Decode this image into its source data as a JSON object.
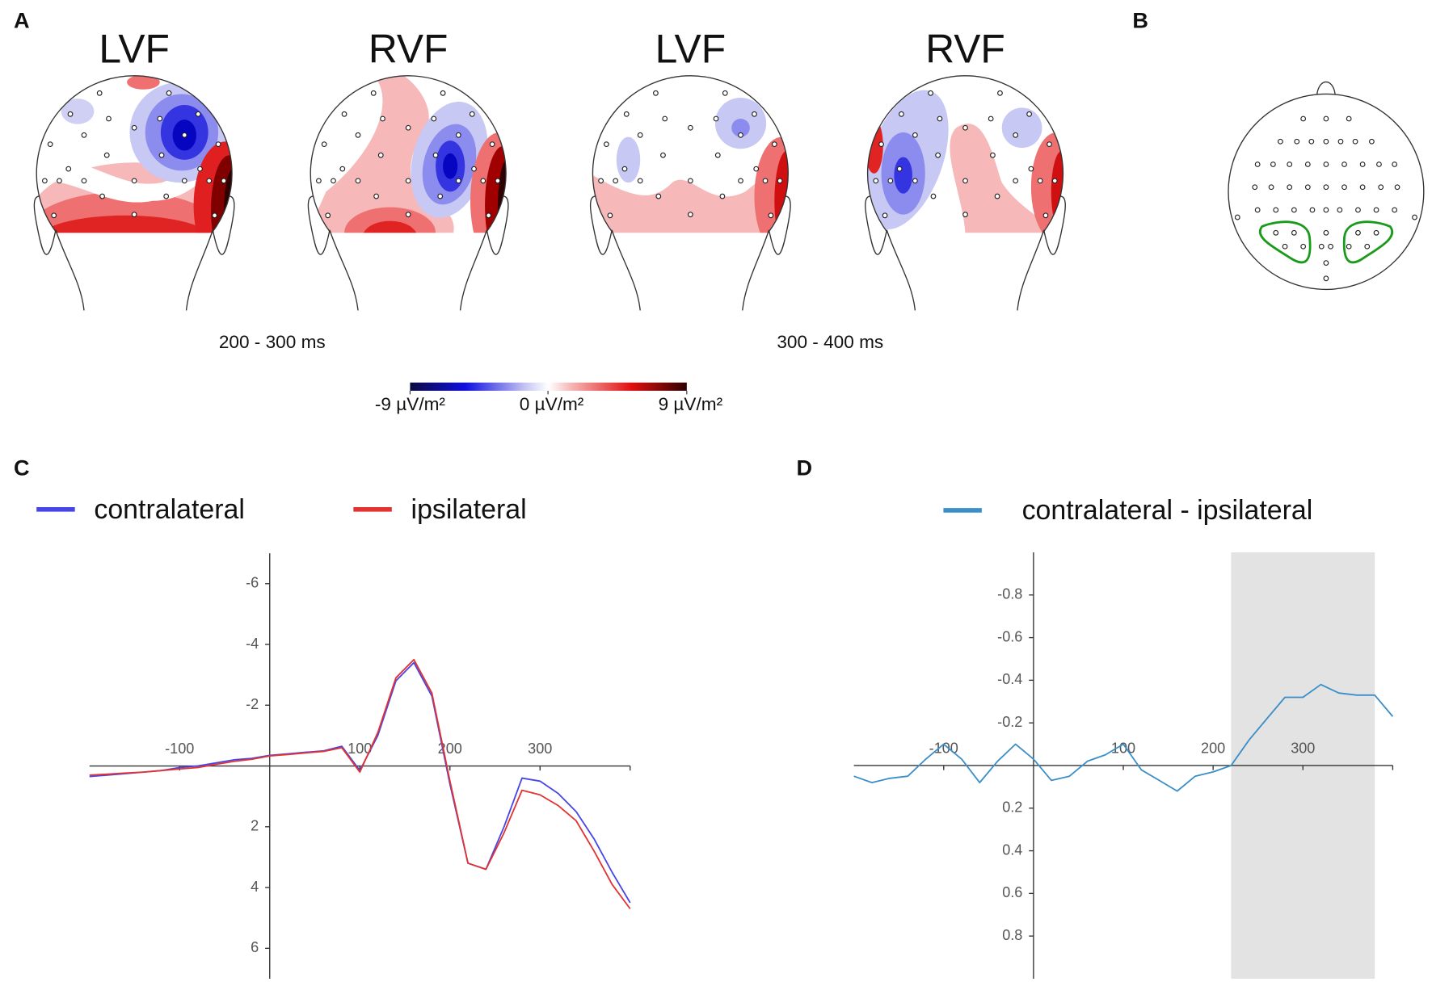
{
  "panel_labels": [
    "A",
    "B",
    "C",
    "D"
  ],
  "topomaps": {
    "titles": [
      "LVF",
      "RVF",
      "LVF",
      "RVF"
    ],
    "windows": [
      "200 - 300 ms",
      "300 - 400 ms"
    ],
    "colorbar_labels": [
      "-9 µV/m²",
      "0 µV/m²",
      "9 µV/m²"
    ]
  },
  "chart_data": [
    {
      "type": "line",
      "x": [
        -200,
        -180,
        -160,
        -140,
        -120,
        -100,
        -80,
        -60,
        -40,
        -20,
        0,
        20,
        40,
        60,
        80,
        100,
        120,
        140,
        160,
        180,
        200,
        220,
        240,
        260,
        280,
        300,
        320,
        340,
        360,
        380,
        400
      ],
      "series": [
        {
          "name": "contralateral",
          "color": "#4646e6",
          "values": [
            0.35,
            0.3,
            0.25,
            0.2,
            0.15,
            0.05,
            0.0,
            -0.1,
            -0.2,
            -0.25,
            -0.35,
            -0.4,
            -0.45,
            -0.5,
            -0.65,
            0.15,
            -1.0,
            -2.8,
            -3.4,
            -2.3,
            0.6,
            3.2,
            3.4,
            2.0,
            0.4,
            0.5,
            0.9,
            1.5,
            2.4,
            3.5,
            4.5
          ]
        },
        {
          "name": "ipsilateral",
          "color": "#e23232",
          "values": [
            0.3,
            0.27,
            0.23,
            0.2,
            0.15,
            0.1,
            0.05,
            -0.05,
            -0.15,
            -0.22,
            -0.33,
            -0.38,
            -0.43,
            -0.48,
            -0.6,
            0.2,
            -1.1,
            -2.9,
            -3.5,
            -2.4,
            0.5,
            3.2,
            3.4,
            2.2,
            0.8,
            0.95,
            1.3,
            1.8,
            2.8,
            3.9,
            4.7
          ]
        }
      ],
      "xlim": [
        -200,
        400
      ],
      "xticks": [
        -100,
        100,
        200,
        300
      ],
      "ylim": [
        7,
        -7
      ],
      "yticks": [
        -6,
        -4,
        -2,
        2,
        4,
        6
      ]
    },
    {
      "type": "line",
      "x": [
        -200,
        -180,
        -160,
        -140,
        -120,
        -100,
        -80,
        -60,
        -40,
        -20,
        0,
        20,
        40,
        60,
        80,
        100,
        120,
        140,
        160,
        180,
        200,
        220,
        240,
        260,
        280,
        300,
        320,
        340,
        360,
        380,
        400
      ],
      "series": [
        {
          "name": "contralateral - ipsilateral",
          "color": "#3a8fc8",
          "values": [
            0.05,
            0.08,
            0.06,
            0.05,
            -0.03,
            -0.1,
            -0.03,
            0.08,
            -0.02,
            -0.1,
            -0.03,
            0.07,
            0.05,
            -0.02,
            -0.05,
            -0.1,
            0.02,
            0.07,
            0.12,
            0.05,
            0.03,
            0.0,
            -0.12,
            -0.22,
            -0.32,
            -0.32,
            -0.38,
            -0.34,
            -0.33,
            -0.33,
            -0.23
          ]
        }
      ],
      "xlim": [
        -200,
        400
      ],
      "xticks": [
        -100,
        100,
        200,
        300
      ],
      "ylim": [
        1,
        -1
      ],
      "yticks": [
        -0.8,
        -0.6,
        -0.4,
        -0.2,
        0.2,
        0.4,
        0.6,
        0.8
      ],
      "shaded_region": [
        220,
        380
      ]
    }
  ]
}
